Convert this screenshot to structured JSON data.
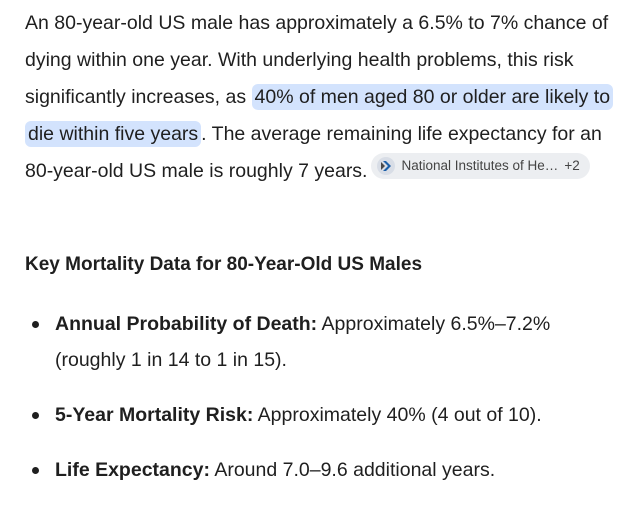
{
  "paragraph": {
    "before": "An 80-year-old US male has approximately a 6.5% to 7% chance of dying within one year. With underlying health problems, this risk significantly increases, as",
    "highlight": "40% of men aged 80 or older are likely to die within five years",
    "after": ". The average remaining life expectancy for an 80-year-old US male is roughly 7 years.",
    "source": {
      "label": "National Institutes of He…",
      "more": "+2"
    }
  },
  "heading": "Key Mortality Data for 80-Year-Old US Males",
  "bullets": [
    {
      "label": "Annual Probability of Death:",
      "text": "Approximately 6.5%–7.2% (roughly 1 in 14 to 1 in 15)."
    },
    {
      "label": "5-Year Mortality Risk:",
      "text": "Approximately 40% (4 out of 10)."
    },
    {
      "label": "Life Expectancy:",
      "text": "Around 7.0–9.6 additional years."
    }
  ]
}
